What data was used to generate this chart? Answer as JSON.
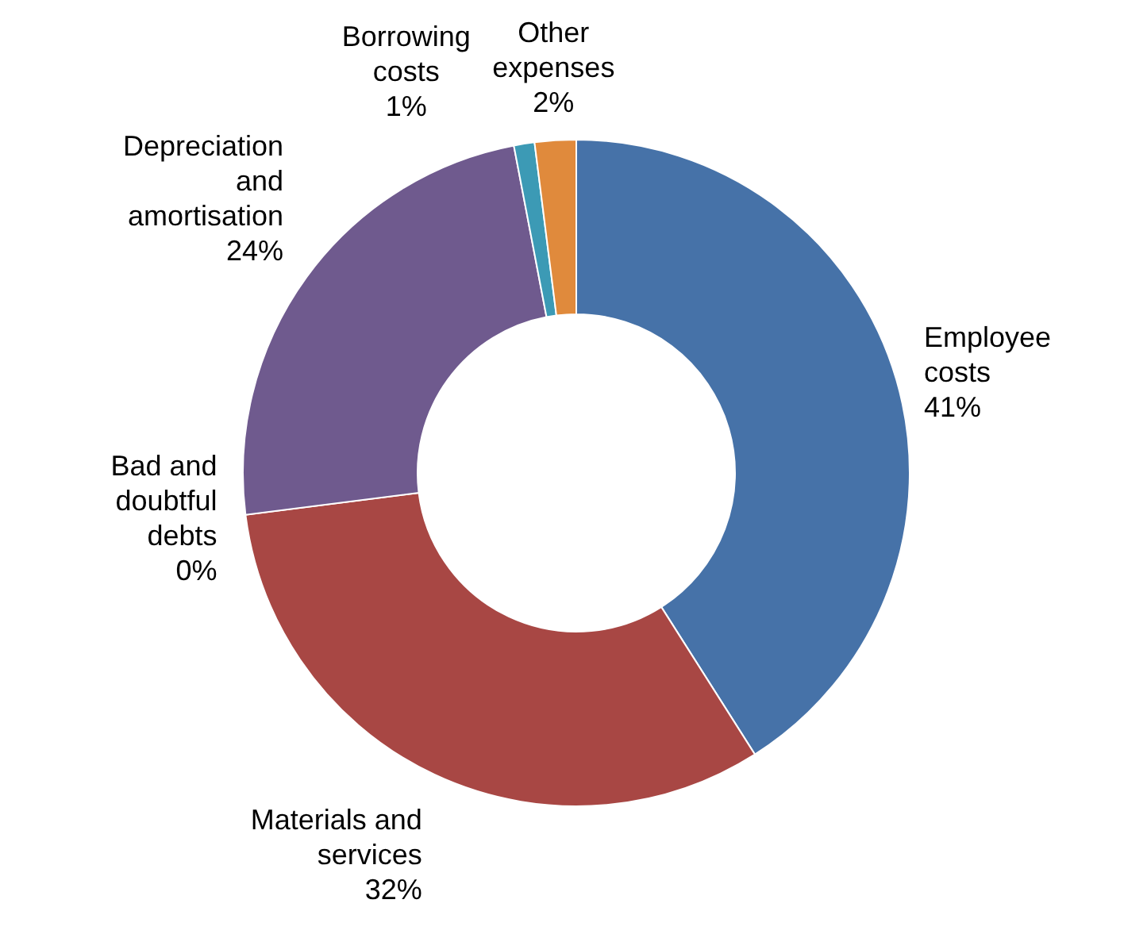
{
  "chart_data": {
    "type": "donut",
    "categories": [
      "Employee costs",
      "Materials and services",
      "Bad and doubtful debts",
      "Depreciation and amortisation",
      "Borrowing costs",
      "Other expenses"
    ],
    "values": [
      41,
      32,
      0,
      24,
      1,
      2
    ],
    "value_labels": [
      "41%",
      "32%",
      "0%",
      "24%",
      "1%",
      "2%"
    ],
    "colors": [
      "#4672a8",
      "#a84744",
      null,
      "#6f5a8e",
      "#3c9ab5",
      "#e08a3c"
    ]
  }
}
